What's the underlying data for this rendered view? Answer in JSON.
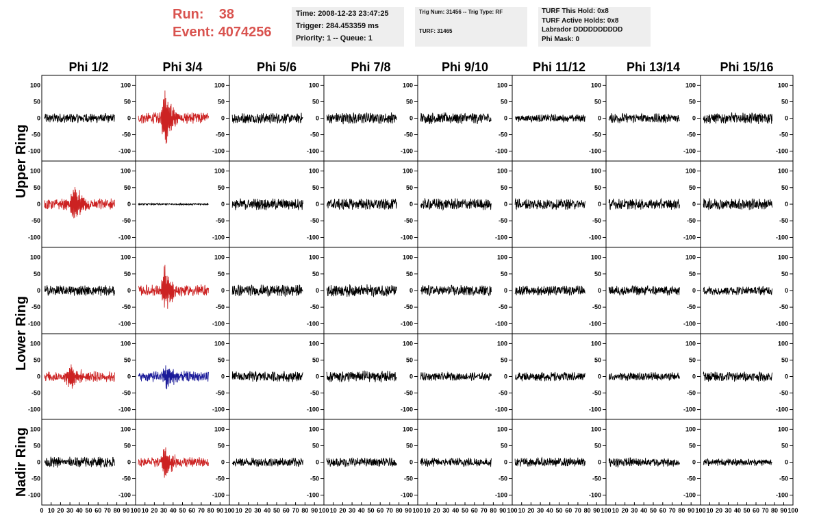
{
  "header": {
    "run_label": "Run:",
    "run_value": "38",
    "event_label": "Event:",
    "event_value": "4074256",
    "box1": [
      "Time: 2008-12-23 23:47:25",
      "Trigger: 284.453359 ms",
      "Priority: 1 -- Queue: 1"
    ],
    "box2": [
      "Trig Num: 31456 -- Trig Type: RF",
      "TURF: 31465"
    ],
    "box3": [
      "TURF This Hold: 0x8",
      "TURF Active Holds: 0x8",
      "Labrador DDDDDDDDDD",
      "Phi Mask: 0"
    ]
  },
  "colors": {
    "black": "#000000",
    "red": "#cc2222",
    "blue": "#1a1a99",
    "title_red": "#d9534f"
  },
  "chart_data": {
    "type": "line",
    "columns": [
      "Phi 1/2",
      "Phi 3/4",
      "Phi 5/6",
      "Phi 7/8",
      "Phi 9/10",
      "Phi 11/12",
      "Phi 13/14",
      "Phi 15/16"
    ],
    "rows": [
      "Upper Ring",
      "Upper Ring",
      "Lower Ring",
      "Lower Ring",
      "Nadir Ring"
    ],
    "row_labels": [
      "Upper Ring",
      "Lower Ring",
      "Nadir Ring"
    ],
    "xlim": [
      0,
      100
    ],
    "ylim": [
      -130,
      130
    ],
    "y_ticks": [
      100,
      50,
      0,
      -50,
      -100
    ],
    "x_tick_labels": [
      "0",
      "10",
      "20",
      "30",
      "40",
      "50",
      "60",
      "70",
      "80",
      "90",
      "100"
    ],
    "panels": [
      [
        {
          "color": "black",
          "amp": 12,
          "burst": 0,
          "burst_at": 0
        },
        {
          "color": "red",
          "amp": 14,
          "burst": 120,
          "burst_at": 38
        },
        {
          "color": "black",
          "amp": 13,
          "burst": 0,
          "burst_at": 0
        },
        {
          "color": "black",
          "amp": 14,
          "burst": 0,
          "burst_at": 0
        },
        {
          "color": "black",
          "amp": 14,
          "burst": 0,
          "burst_at": 0
        },
        {
          "color": "black",
          "amp": 9,
          "burst": 0,
          "burst_at": 0
        },
        {
          "color": "black",
          "amp": 12,
          "burst": 0,
          "burst_at": 0
        },
        {
          "color": "black",
          "amp": 14,
          "burst": 0,
          "burst_at": 0
        }
      ],
      [
        {
          "color": "red",
          "amp": 14,
          "burst": 80,
          "burst_at": 42
        },
        {
          "color": "black",
          "amp": 2,
          "burst": 0,
          "burst_at": 0
        },
        {
          "color": "black",
          "amp": 14,
          "burst": 0,
          "burst_at": 0
        },
        {
          "color": "black",
          "amp": 14,
          "burst": 0,
          "burst_at": 0
        },
        {
          "color": "black",
          "amp": 14,
          "burst": 0,
          "burst_at": 0
        },
        {
          "color": "black",
          "amp": 13,
          "burst": 0,
          "burst_at": 0
        },
        {
          "color": "black",
          "amp": 13,
          "burst": 0,
          "burst_at": 0
        },
        {
          "color": "black",
          "amp": 14,
          "burst": 0,
          "burst_at": 0
        }
      ],
      [
        {
          "color": "black",
          "amp": 13,
          "burst": 0,
          "burst_at": 0
        },
        {
          "color": "red",
          "amp": 14,
          "burst": 80,
          "burst_at": 38
        },
        {
          "color": "black",
          "amp": 14,
          "burst": 0,
          "burst_at": 0
        },
        {
          "color": "black",
          "amp": 15,
          "burst": 0,
          "burst_at": 0
        },
        {
          "color": "black",
          "amp": 13,
          "burst": 0,
          "burst_at": 0
        },
        {
          "color": "black",
          "amp": 12,
          "burst": 0,
          "burst_at": 0
        },
        {
          "color": "black",
          "amp": 12,
          "burst": 0,
          "burst_at": 0
        },
        {
          "color": "black",
          "amp": 11,
          "burst": 0,
          "burst_at": 0
        }
      ],
      [
        {
          "color": "red",
          "amp": 13,
          "burst": 50,
          "burst_at": 36
        },
        {
          "color": "blue",
          "amp": 13,
          "burst": 45,
          "burst_at": 40
        },
        {
          "color": "black",
          "amp": 13,
          "burst": 0,
          "burst_at": 0
        },
        {
          "color": "black",
          "amp": 14,
          "burst": 0,
          "burst_at": 0
        },
        {
          "color": "black",
          "amp": 10,
          "burst": 0,
          "burst_at": 0
        },
        {
          "color": "black",
          "amp": 11,
          "burst": 0,
          "burst_at": 0
        },
        {
          "color": "black",
          "amp": 10,
          "burst": 0,
          "burst_at": 0
        },
        {
          "color": "black",
          "amp": 12,
          "burst": 0,
          "burst_at": 0
        }
      ],
      [
        {
          "color": "black",
          "amp": 13,
          "burst": 0,
          "burst_at": 0
        },
        {
          "color": "red",
          "amp": 12,
          "burst": 60,
          "burst_at": 38
        },
        {
          "color": "black",
          "amp": 11,
          "burst": 0,
          "burst_at": 0
        },
        {
          "color": "black",
          "amp": 11,
          "burst": 0,
          "burst_at": 0
        },
        {
          "color": "black",
          "amp": 11,
          "burst": 0,
          "burst_at": 0
        },
        {
          "color": "black",
          "amp": 11,
          "burst": 0,
          "burst_at": 0
        },
        {
          "color": "black",
          "amp": 11,
          "burst": 0,
          "burst_at": 0
        },
        {
          "color": "black",
          "amp": 9,
          "burst": 0,
          "burst_at": 0
        }
      ]
    ]
  }
}
